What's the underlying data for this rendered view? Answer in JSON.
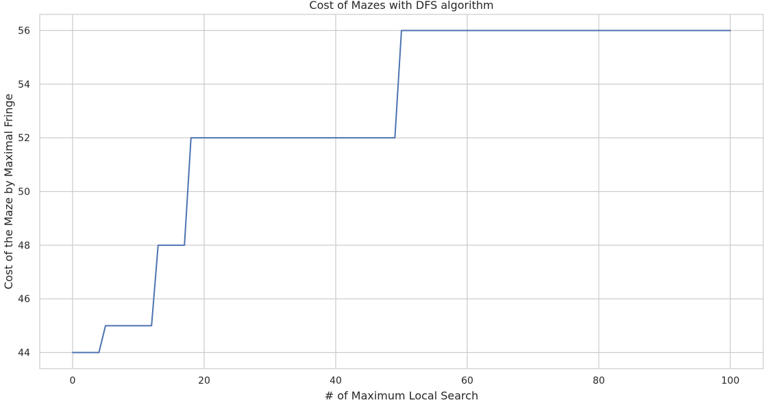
{
  "chart_data": {
    "type": "line",
    "title": "Cost of Mazes with DFS algorithm",
    "xlabel": "# of Maximum Local Search",
    "ylabel": "Cost of the Maze by Maximal Fringe",
    "xlim": [
      -5,
      105
    ],
    "ylim": [
      43.4,
      56.6
    ],
    "xticks": [
      0,
      20,
      40,
      60,
      80,
      100
    ],
    "yticks": [
      44,
      46,
      48,
      50,
      52,
      54,
      56
    ],
    "grid": true,
    "legend": "none",
    "series": [
      {
        "color": "#4c72b0",
        "x": [
          0,
          4,
          5,
          12,
          13,
          17,
          18,
          49,
          50,
          100
        ],
        "y": [
          44,
          44,
          45,
          45,
          48,
          48,
          52,
          52,
          56,
          56
        ]
      }
    ]
  }
}
